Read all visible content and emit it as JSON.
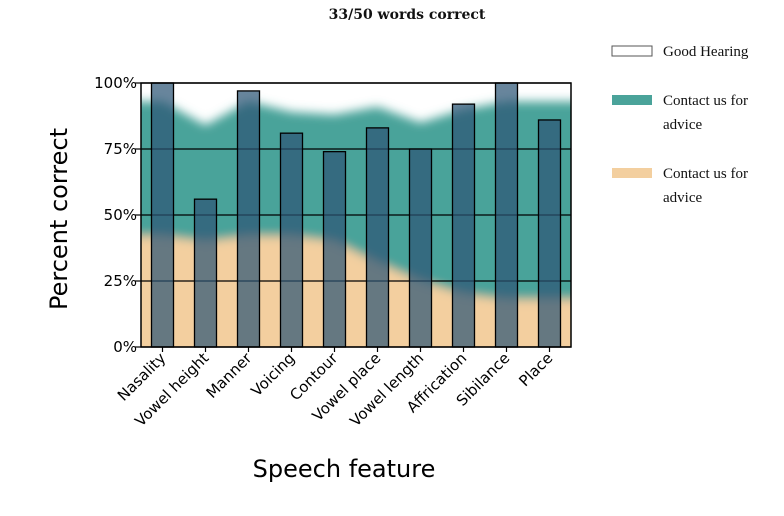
{
  "chart_data": {
    "type": "bar",
    "title": "33/50 words correct",
    "xlabel": "Speech feature",
    "ylabel": "Percent correct",
    "ylim": [
      0,
      100
    ],
    "yticks": [
      {
        "value": 0,
        "label": "0%"
      },
      {
        "value": 25,
        "label": "25%"
      },
      {
        "value": 50,
        "label": "50%"
      },
      {
        "value": 75,
        "label": "75%"
      },
      {
        "value": 100,
        "label": "100%"
      }
    ],
    "grid": true,
    "categories": [
      "Nasality",
      "Vowel height",
      "Manner",
      "Voicing",
      "Contour",
      "Vowel place",
      "Vowel length",
      "Affrication",
      "Sibilance",
      "Place"
    ],
    "values": [
      100,
      56,
      97,
      81,
      74,
      83,
      75,
      92,
      100,
      86
    ],
    "bar_color": "#2e5676",
    "bands": {
      "upper_boundary": [
        93,
        84,
        93,
        89,
        88,
        91,
        85,
        90,
        93,
        93
      ],
      "lower_boundary": [
        42,
        40,
        42,
        42,
        40,
        32,
        25,
        20,
        18,
        18
      ]
    },
    "legend": {
      "placement": "right",
      "items": [
        {
          "label": "Good Hearing",
          "color": "#ffffff"
        },
        {
          "label": "Contact us for advice",
          "color": "#4aa39a"
        },
        {
          "label": "Contact us for advice",
          "color": "#f3cf9f"
        }
      ]
    }
  }
}
